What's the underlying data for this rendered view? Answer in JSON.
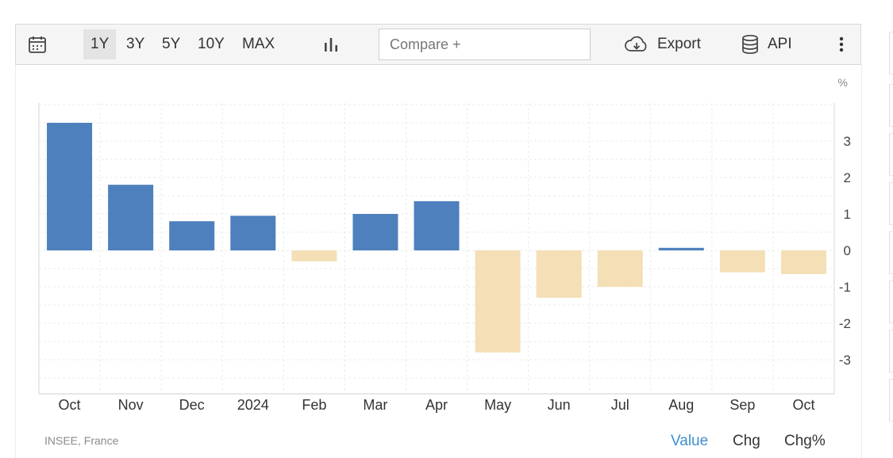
{
  "toolbar": {
    "calendar_icon": "calendar-icon",
    "ranges": [
      "1Y",
      "3Y",
      "5Y",
      "10Y",
      "MAX"
    ],
    "active_range": "1Y",
    "chart_type_icon": "bar-chart-icon",
    "compare_placeholder": "Compare +",
    "export_label": "Export",
    "export_icon": "cloud-download-icon",
    "api_label": "API",
    "api_icon": "database-icon",
    "more_icon": "vertical-ellipsis-icon"
  },
  "chart_data": {
    "type": "bar",
    "unit_label": "%",
    "categories": [
      "Oct",
      "Nov",
      "Dec",
      "2024",
      "Feb",
      "Mar",
      "Apr",
      "May",
      "Jun",
      "Jul",
      "Aug",
      "Sep",
      "Oct"
    ],
    "values": [
      3.5,
      1.8,
      0.8,
      0.95,
      -0.3,
      1.0,
      1.35,
      -2.8,
      -1.3,
      -1.0,
      0.07,
      -0.6,
      -0.65
    ],
    "yticks": [
      3,
      2,
      1,
      0,
      -1,
      -2,
      -3
    ],
    "ylim": [
      -4,
      4
    ],
    "y_axis_side": "right",
    "grid": true,
    "positive_color": "#4e80bd",
    "negative_color": "#f4dfb6"
  },
  "footer": {
    "source": "INSEE, France",
    "tabs": [
      "Value",
      "Chg",
      "Chg%"
    ],
    "active_tab": "Value"
  }
}
